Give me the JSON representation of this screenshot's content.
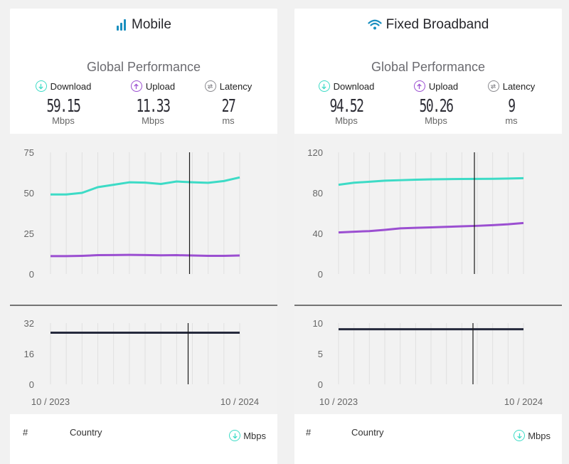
{
  "panels": [
    {
      "title": "Mobile",
      "title_icon": "signal-bars-icon",
      "subtitle": "Global Performance",
      "metrics": {
        "download": {
          "label": "Download",
          "value": "59.15",
          "unit": "Mbps"
        },
        "upload": {
          "label": "Upload",
          "value": "11.33",
          "unit": "Mbps"
        },
        "latency": {
          "label": "Latency",
          "value": "27",
          "unit": "ms"
        }
      },
      "table": {
        "rank_header": "#",
        "country_header": "Country",
        "mbps_header": "Mbps"
      }
    },
    {
      "title": "Fixed Broadband",
      "title_icon": "wifi-icon",
      "subtitle": "Global Performance",
      "metrics": {
        "download": {
          "label": "Download",
          "value": "94.52",
          "unit": "Mbps"
        },
        "upload": {
          "label": "Upload",
          "value": "50.26",
          "unit": "Mbps"
        },
        "latency": {
          "label": "Latency",
          "value": "9",
          "unit": "ms"
        }
      },
      "table": {
        "rank_header": "#",
        "country_header": "Country",
        "mbps_header": "Mbps"
      }
    }
  ],
  "colors": {
    "download": "#3ddbc6",
    "upload": "#9b4fd1",
    "latency": "#8a8a8f",
    "latency_line": "#262a3d",
    "accent_blue": "#1a8fbf"
  },
  "chart_data": [
    {
      "type": "line",
      "panel": "Mobile",
      "x_start_label": "10 / 2023",
      "x_end_label": "10 / 2024",
      "x": [
        "10 / 2023",
        "11 / 2023",
        "12 / 2023",
        "01 / 2024",
        "02 / 2024",
        "03 / 2024",
        "04 / 2024",
        "05 / 2024",
        "06 / 2024",
        "07 / 2024",
        "08 / 2024",
        "09 / 2024",
        "10 / 2024"
      ],
      "yticks": [
        0,
        25,
        50,
        75
      ],
      "ylim": [
        0,
        75
      ],
      "grid": true,
      "series": [
        {
          "key": "download",
          "values": [
            49,
            49,
            50,
            53.5,
            55,
            56.5,
            56.3,
            55.5,
            57,
            56.5,
            56.2,
            57.3,
            59.5
          ]
        },
        {
          "key": "upload",
          "values": [
            11,
            11,
            11.2,
            11.6,
            11.7,
            11.8,
            11.7,
            11.5,
            11.6,
            11.4,
            11.2,
            11.2,
            11.4
          ]
        }
      ],
      "cursor_x": "07 / 2024",
      "latency": {
        "yticks": [
          0,
          16,
          32
        ],
        "ylim": [
          0,
          32
        ],
        "values": [
          27,
          27,
          27,
          27,
          27,
          27,
          27,
          27,
          27,
          27,
          27,
          27,
          27
        ]
      }
    },
    {
      "type": "line",
      "panel": "Fixed Broadband",
      "x_start_label": "10 / 2023",
      "x_end_label": "10 / 2024",
      "x": [
        "10 / 2023",
        "11 / 2023",
        "12 / 2023",
        "01 / 2024",
        "02 / 2024",
        "03 / 2024",
        "04 / 2024",
        "05 / 2024",
        "06 / 2024",
        "07 / 2024",
        "08 / 2024",
        "09 / 2024",
        "10 / 2024"
      ],
      "yticks": [
        0,
        40,
        80,
        120
      ],
      "ylim": [
        0,
        120
      ],
      "grid": true,
      "series": [
        {
          "key": "download",
          "values": [
            88,
            90,
            91,
            92,
            92.5,
            93,
            93.3,
            93.5,
            93.7,
            93.8,
            93.9,
            94.1,
            94.5
          ]
        },
        {
          "key": "upload",
          "values": [
            41,
            41.7,
            42.3,
            43.5,
            45,
            45.5,
            46,
            46.5,
            47,
            47.5,
            48.2,
            49,
            50.3
          ]
        }
      ],
      "cursor_x": "07 / 2024",
      "latency": {
        "yticks": [
          0,
          5,
          10
        ],
        "ylim": [
          0,
          10
        ],
        "values": [
          9,
          9,
          9,
          9,
          9,
          9,
          9,
          9,
          9,
          9,
          9,
          9,
          9
        ]
      }
    }
  ]
}
